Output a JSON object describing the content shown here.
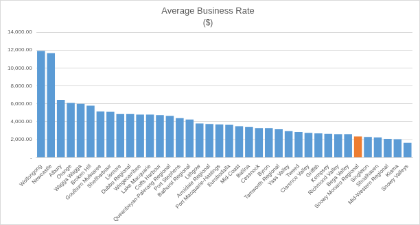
{
  "chart_data": {
    "type": "bar",
    "title": "Average Business Rate",
    "subtitle": "($)",
    "categories": [
      "Wollongong",
      "Newcastle",
      "Albury",
      "Orange",
      "Wagga Wagga",
      "Broken Hill",
      "Goulburn Mulwaree",
      "Shellharbour",
      "Lismore",
      "Dubbo Regional",
      "Wingecarribee",
      "Lake Macquarie",
      "Coffs Harbour",
      "Queanbeyan-Palerang Regional",
      "Port Stephens",
      "Bathurst Regional",
      "Lithgow",
      "Armidale Regional",
      "Port Macquarie-Hastings",
      "Eurobodalla",
      "Mid-Coast",
      "Ballina",
      "Cessnock",
      "Byron",
      "Tamworth Regional",
      "Yass Valley",
      "Tweed",
      "Clarence Valley",
      "Griffith",
      "Kempsey",
      "Richmond Valley",
      "Bega Valley",
      "Snowy Monaro Regional",
      "Singleton",
      "Shoalhaven",
      "Mid-Western Regional",
      "Kiama",
      "Snowy Valleys"
    ],
    "values": [
      11900,
      11650,
      6450,
      6100,
      6000,
      5800,
      5150,
      5100,
      4850,
      4850,
      4800,
      4800,
      4750,
      4650,
      4400,
      4250,
      3800,
      3750,
      3700,
      3650,
      3500,
      3400,
      3300,
      3300,
      3150,
      2950,
      2850,
      2750,
      2700,
      2650,
      2600,
      2600,
      2350,
      2300,
      2250,
      2100,
      2050,
      1650
    ],
    "colors": [
      "#5b9bd5",
      "#5b9bd5",
      "#5b9bd5",
      "#5b9bd5",
      "#5b9bd5",
      "#5b9bd5",
      "#5b9bd5",
      "#5b9bd5",
      "#5b9bd5",
      "#5b9bd5",
      "#5b9bd5",
      "#5b9bd5",
      "#5b9bd5",
      "#5b9bd5",
      "#5b9bd5",
      "#5b9bd5",
      "#5b9bd5",
      "#5b9bd5",
      "#5b9bd5",
      "#5b9bd5",
      "#5b9bd5",
      "#5b9bd5",
      "#5b9bd5",
      "#5b9bd5",
      "#5b9bd5",
      "#5b9bd5",
      "#5b9bd5",
      "#5b9bd5",
      "#5b9bd5",
      "#5b9bd5",
      "#5b9bd5",
      "#5b9bd5",
      "#ed7d31",
      "#5b9bd5",
      "#5b9bd5",
      "#5b9bd5",
      "#5b9bd5",
      "#5b9bd5"
    ],
    "ylim": [
      0,
      14000
    ],
    "yticks": [
      {
        "value": 0,
        "label": "-"
      },
      {
        "value": 2000,
        "label": "2,000.00"
      },
      {
        "value": 4000,
        "label": "4,000.00"
      },
      {
        "value": 6000,
        "label": "6,000.00"
      },
      {
        "value": 8000,
        "label": "8,000.00"
      },
      {
        "value": 10000,
        "label": "10,000.00"
      },
      {
        "value": 12000,
        "label": "12,000.00"
      },
      {
        "value": 14000,
        "label": "14,000.00"
      }
    ],
    "grid": true
  }
}
